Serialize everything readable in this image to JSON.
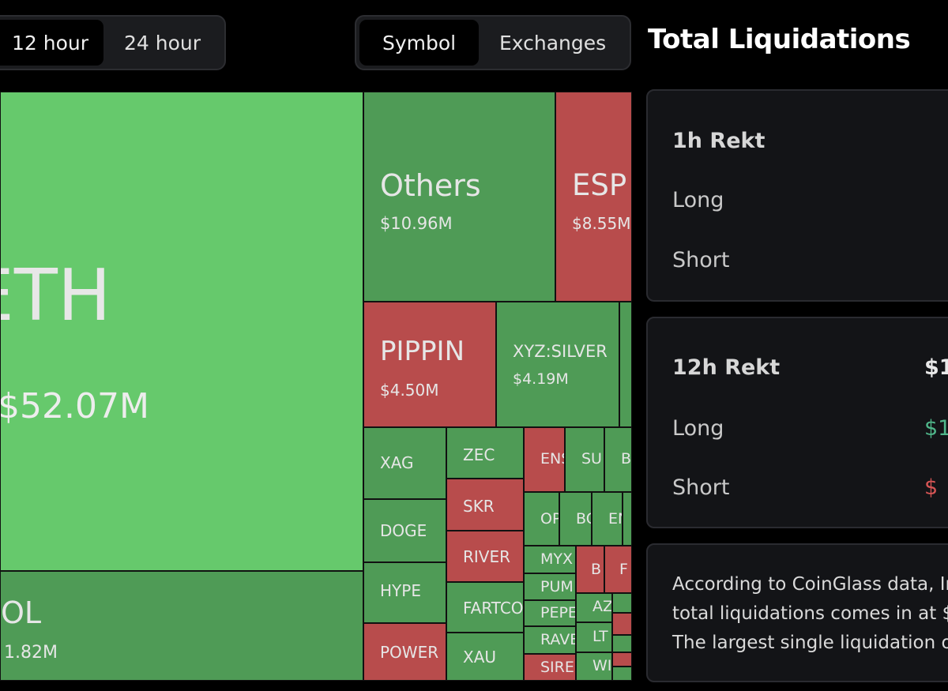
{
  "time_tabs": [
    {
      "label": "12 hour",
      "active": true
    },
    {
      "label": "24 hour",
      "active": false
    }
  ],
  "view_tabs": [
    {
      "label": "Symbol",
      "active": true
    },
    {
      "label": "Exchanges",
      "active": false
    }
  ],
  "panel": {
    "title": "Total Liquidations",
    "rekt_1h": {
      "label": "1h Rekt",
      "long_label": "Long",
      "short_label": "Short"
    },
    "rekt_12h": {
      "label": "12h Rekt",
      "total": "$1",
      "long_label": "Long",
      "long_value": "$1",
      "short_label": "Short",
      "short_value": "$"
    },
    "description": [
      "According to CoinGlass data, In",
      "total liquidations comes in at $",
      "The largest single liquidation or"
    ]
  },
  "treemap": {
    "colors": {
      "long_bright": "#66c96c",
      "long": "#4f9b56",
      "short": "#b84c4c"
    },
    "cells": {
      "eth": {
        "symbol": "ETH",
        "value": "$52.07M"
      },
      "sol": {
        "symbol": "OL",
        "value": "1.82M"
      },
      "others": {
        "symbol": "Others",
        "value": "$10.96M"
      },
      "esp": {
        "symbol": "ESP",
        "value": "$8.55M"
      },
      "pippin": {
        "symbol": "PIPPIN",
        "value": "$4.50M"
      },
      "silver": {
        "symbol": "XYZ:SILVER",
        "value": "$4.19M"
      },
      "xag": "XAG",
      "doge": "DOGE",
      "hype": "HYPE",
      "power": "POWER",
      "zec": "ZEC",
      "skr": "SKR",
      "river": "RIVER",
      "fartco": "FARTCO",
      "xau": "XAU",
      "ens": "ENS",
      "su": "SU",
      "b": "B",
      "op": "OP",
      "bc": "BC",
      "en": "EN",
      "myx": "MYX",
      "pum": "PUM",
      "pepe": "PEPE",
      "ravi": "RAVE",
      "sire": "SIRE",
      "b2": "B",
      "f": "F",
      "az": "AZ",
      "lt": "LT",
      "wi": "WI"
    }
  }
}
